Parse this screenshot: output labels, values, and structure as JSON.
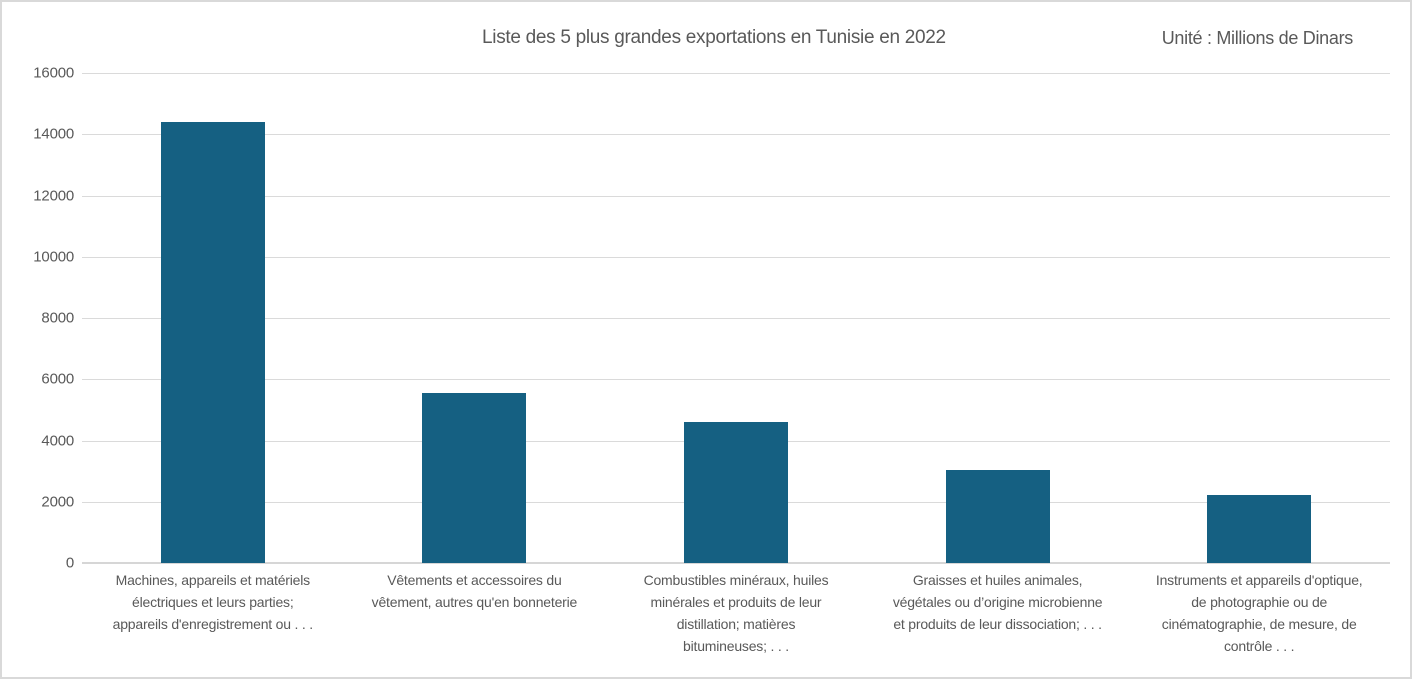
{
  "chart": {
    "unit_label": "Unité : Millions de Dinars",
    "colors": {
      "bar": "#156082",
      "gridline": "#dadada",
      "axis_line": "#d6d6d6",
      "text": "#595959",
      "border": "#d9d9d9",
      "background": "#ffffff"
    }
  },
  "chart_data": {
    "type": "bar",
    "title": "Liste des 5 plus grandes exportations en Tunisie en 2022",
    "unit": "Millions de Dinars",
    "xlabel": "",
    "ylabel": "",
    "ylim": [
      0,
      16000
    ],
    "yticks": [
      0,
      2000,
      4000,
      6000,
      8000,
      10000,
      12000,
      14000,
      16000
    ],
    "grid": true,
    "legend": "none",
    "categories": [
      "Machines, appareils et matériels électriques et leurs parties; appareils d'enregistrement ou . . .",
      "Vêtements et accessoires du vêtement, autres qu'en bonneterie",
      "Combustibles minéraux, huiles minérales et produits de leur distillation; matières bitumineuses; . . .",
      "Graisses et huiles animales, végétales ou d’origine microbienne et produits de leur dissociation; . . .",
      "Instruments et appareils d'optique, de photographie ou de cinématographie, de mesure, de contrôle . . ."
    ],
    "category_lines": [
      [
        "Machines, appareils et matériels",
        "électriques et leurs parties;",
        "appareils d'enregistrement ou . . ."
      ],
      [
        "Vêtements et accessoires du",
        "vêtement, autres qu'en bonneterie"
      ],
      [
        "Combustibles minéraux, huiles",
        "minérales et produits de leur",
        "distillation; matières",
        "bitumineuses; . . ."
      ],
      [
        "Graisses et huiles animales,",
        "végétales ou d’origine microbienne",
        "et produits de leur dissociation; . . ."
      ],
      [
        "Instruments et appareils d'optique,",
        "de photographie ou de",
        "cinématographie, de mesure, de",
        "contrôle . . ."
      ]
    ],
    "values": [
      14400,
      5560,
      4610,
      3050,
      2220
    ]
  }
}
